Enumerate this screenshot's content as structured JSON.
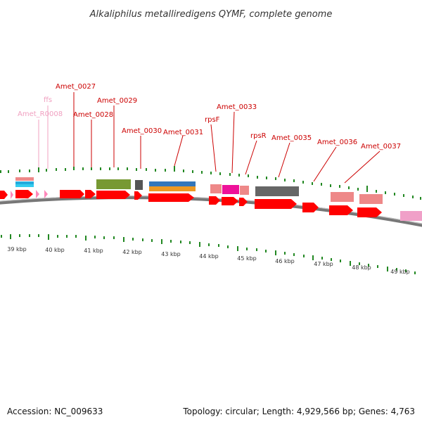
{
  "title": "Alkaliphilus metalliredigens QYMF, complete genome",
  "footer": {
    "accession": "Accession: NC_009633",
    "topology": "Topology: circular; Length: 4,929,566 bp; Genes: 4,763"
  },
  "colors": {
    "gene": "#ff0000",
    "rna": "#ff88bb",
    "tick": "#228822",
    "backbone": "#777777",
    "label_red": "#cc0000",
    "label_pink": "#f0a0c0"
  },
  "kbp_labels": [
    "39 kbp",
    "40 kbp",
    "41 kbp",
    "42 kbp",
    "43 kbp",
    "44 kbp",
    "45 kbp",
    "46 kbp",
    "47 kbp",
    "48 kbp",
    "49 kbp"
  ],
  "gene_labels": [
    {
      "text": "Amet_R0008",
      "color": "pink"
    },
    {
      "text": "ffs",
      "color": "pink"
    },
    {
      "text": "Amet_0027",
      "color": "red"
    },
    {
      "text": "Amet_0028",
      "color": "red"
    },
    {
      "text": "Amet_0029",
      "color": "red"
    },
    {
      "text": "Amet_0030",
      "color": "red"
    },
    {
      "text": "Amet_0031",
      "color": "red"
    },
    {
      "text": "rpsF",
      "color": "red"
    },
    {
      "text": "Amet_0033",
      "color": "red"
    },
    {
      "text": "rpsR",
      "color": "red"
    },
    {
      "text": "Amet_0035",
      "color": "red"
    },
    {
      "text": "Amet_0036",
      "color": "red"
    },
    {
      "text": "Amet_0037",
      "color": "red"
    }
  ]
}
